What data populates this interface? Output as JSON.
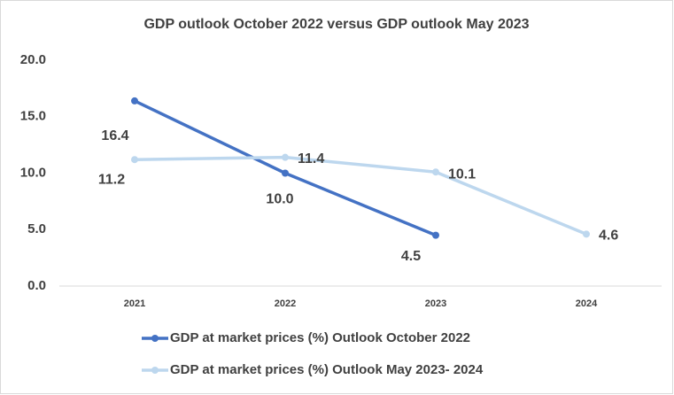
{
  "chart_data": {
    "type": "line",
    "title": "GDP outlook October 2022 versus GDP outlook May 2023",
    "categories": [
      "2021",
      "2022",
      "2023",
      "2024"
    ],
    "series": [
      {
        "name": "GDP at market prices (%) Outlook October 2022",
        "color": "#4472c4",
        "values": [
          16.4,
          10.0,
          4.5,
          null
        ],
        "value_labels": [
          "16.4",
          "10.0",
          "4.5",
          null
        ]
      },
      {
        "name": "GDP at market prices (%) Outlook May 2023- 2024",
        "color": "#bdd7ee",
        "values": [
          11.2,
          11.4,
          10.1,
          4.6
        ],
        "value_labels": [
          "11.2",
          "11.4",
          "10.1",
          "4.6"
        ]
      }
    ],
    "ylim": [
      0,
      20
    ],
    "yticks": [
      {
        "value": 0,
        "label": "0.0"
      },
      {
        "value": 5,
        "label": "5.0"
      },
      {
        "value": 10,
        "label": "10.0"
      },
      {
        "value": 15,
        "label": "15.0"
      },
      {
        "value": 20,
        "label": "20.0"
      }
    ],
    "grid": false,
    "legend": "bottom"
  }
}
